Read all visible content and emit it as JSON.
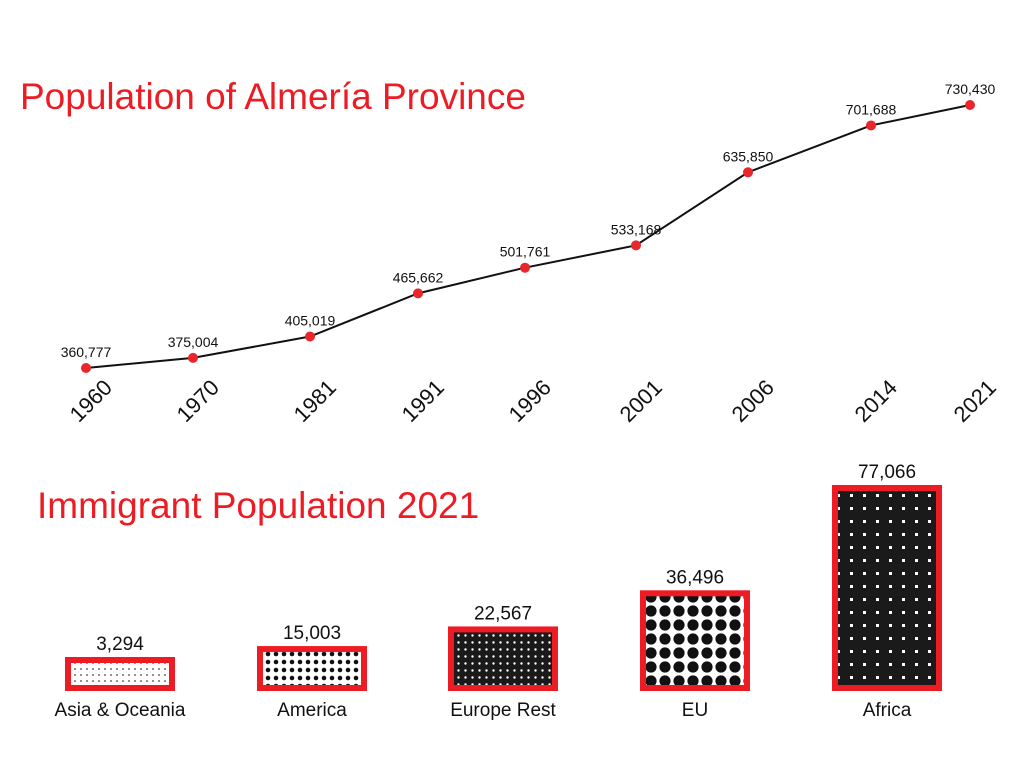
{
  "colors": {
    "accent": "#ed1c24",
    "line": "#111111",
    "marker": "#e8262c",
    "bar_fill": "#1a1a1a",
    "text": "#111111"
  },
  "chart_data": [
    {
      "type": "line",
      "title": "Population of Almería Province",
      "xlabel": "",
      "ylabel": "",
      "categories": [
        "1960",
        "1970",
        "1981",
        "1991",
        "1996",
        "2001",
        "2006",
        "2014",
        "2021"
      ],
      "series": [
        {
          "values": [
            360777,
            375004,
            405019,
            465662,
            501761,
            533168,
            635850,
            701688,
            730430
          ],
          "labels": [
            "360,777",
            "375,004",
            "405,019",
            "465,662",
            "501,761",
            "533,168",
            "635,850",
            "701,688",
            "730,430"
          ]
        }
      ],
      "ylim": [
        360777,
        730430
      ],
      "grid": false,
      "legend": "none"
    },
    {
      "type": "bar",
      "title": "Immigrant Population 2021",
      "xlabel": "",
      "ylabel": "",
      "categories": [
        "Asia & Oceania",
        "America",
        "Europe Rest",
        "EU",
        "Africa"
      ],
      "values": [
        3294,
        15003,
        22567,
        36496,
        77066
      ],
      "value_labels": [
        "3,294",
        "15,003",
        "22,567",
        "36,496",
        "77,066"
      ],
      "grid": false,
      "legend": "none"
    }
  ]
}
